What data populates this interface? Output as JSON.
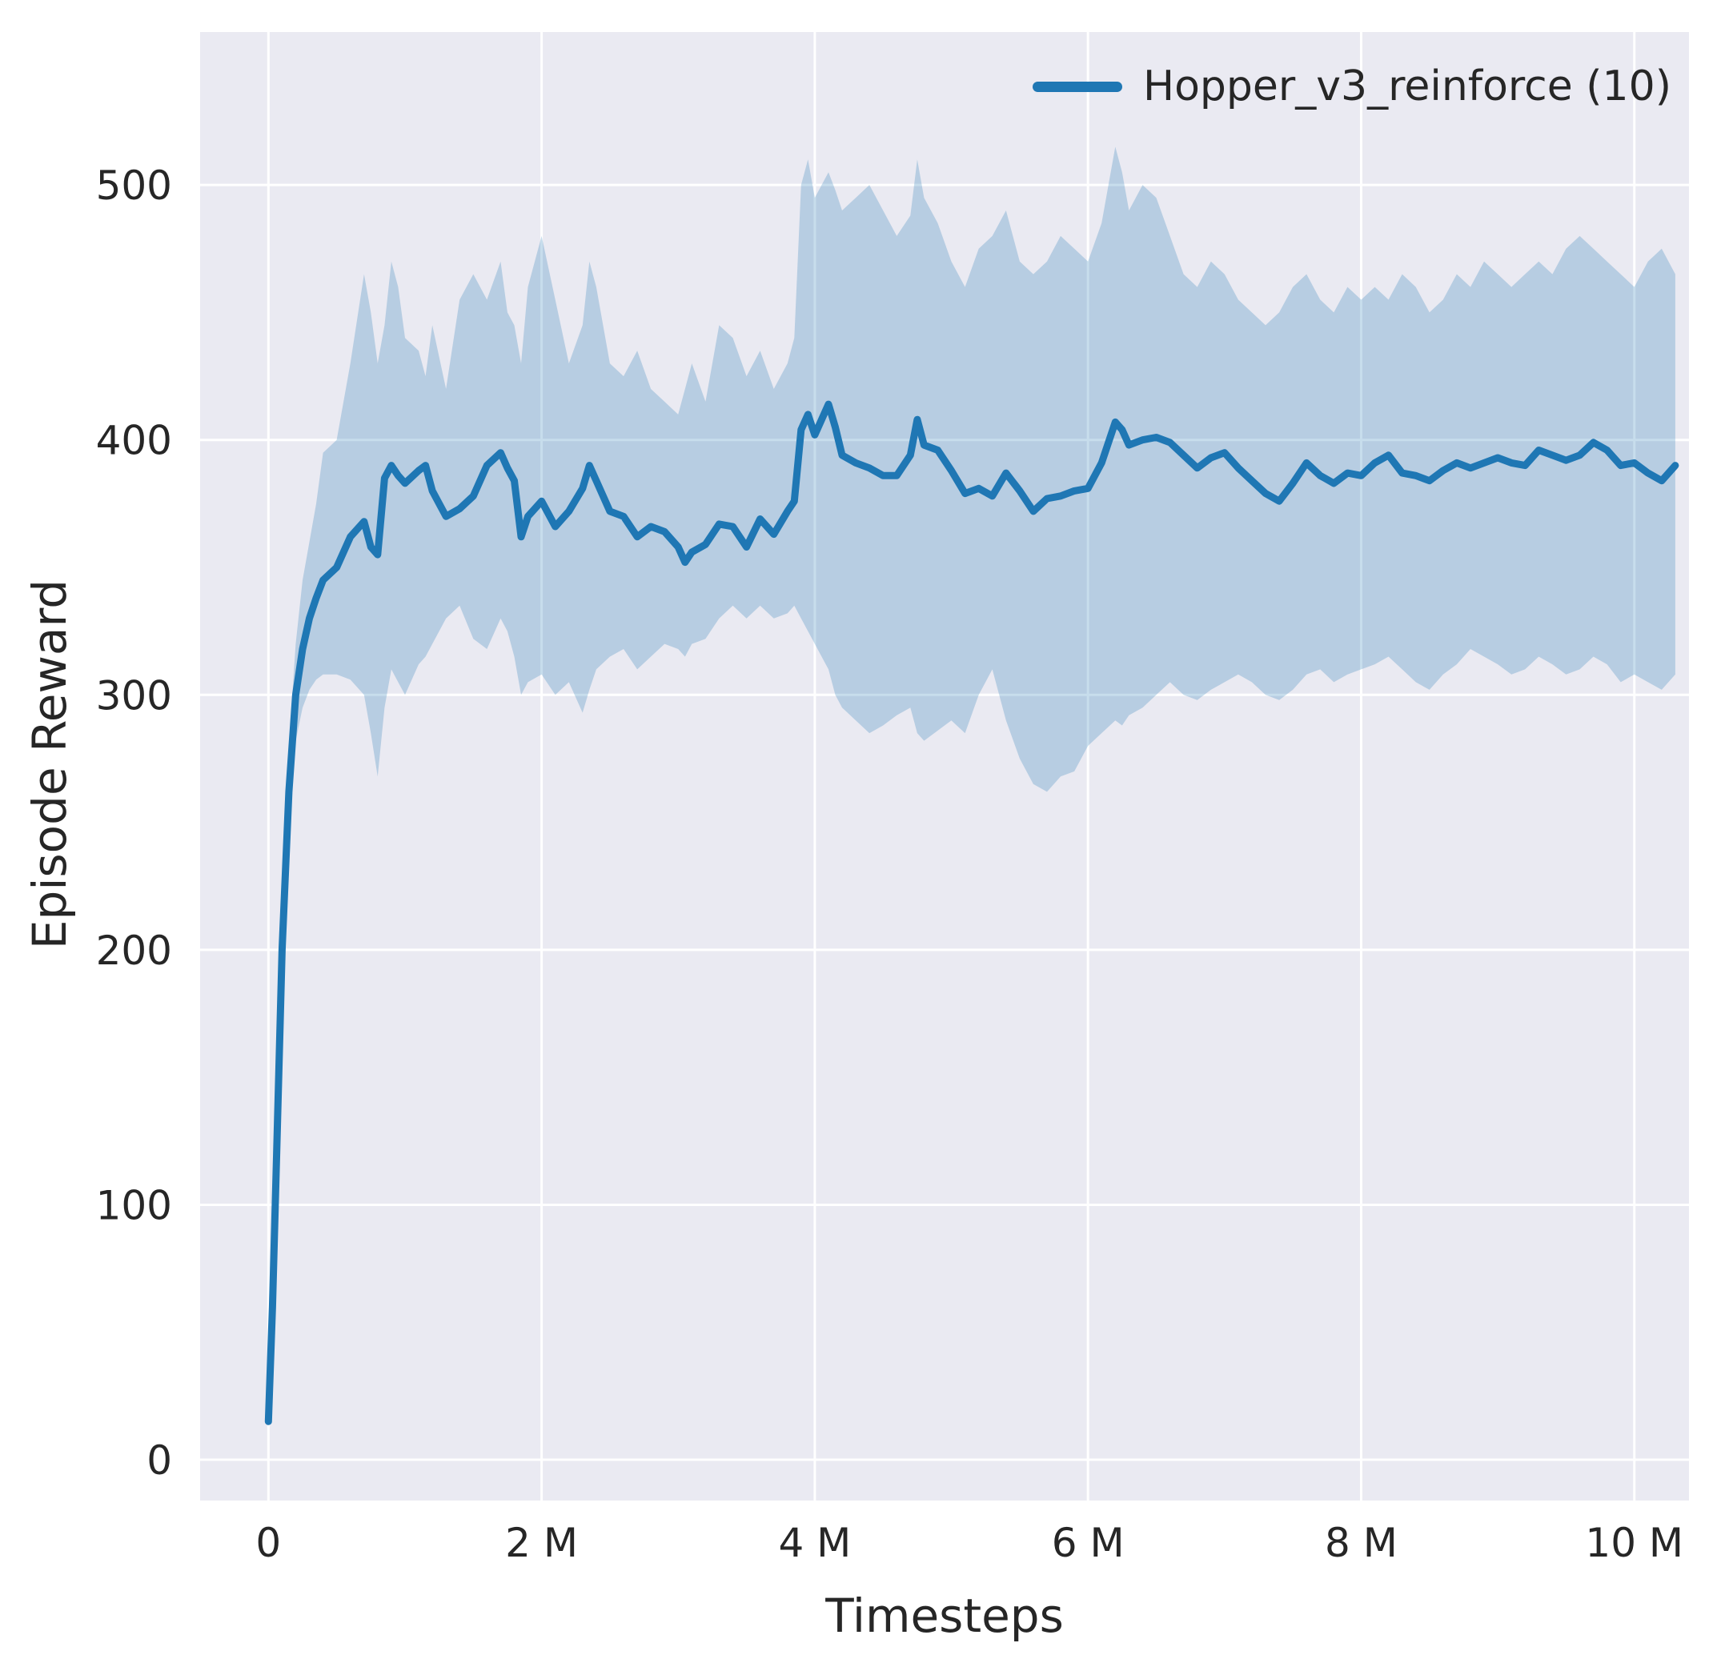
{
  "chart_data": {
    "type": "line",
    "title": "",
    "xlabel": "Timesteps",
    "ylabel": "Episode Reward",
    "x_unit": "millions",
    "xlim": [
      -0.5,
      10.4
    ],
    "ylim": [
      -16,
      560
    ],
    "grid": true,
    "plot_bg": "#eaeaf2",
    "grid_color": "#ffffff",
    "text_color": "#262626",
    "x_ticks": [
      {
        "v": 0,
        "label": "0"
      },
      {
        "v": 2,
        "label": "2 M"
      },
      {
        "v": 4,
        "label": "4 M"
      },
      {
        "v": 6,
        "label": "6 M"
      },
      {
        "v": 8,
        "label": "8 M"
      },
      {
        "v": 10,
        "label": "10 M"
      }
    ],
    "y_ticks": [
      {
        "v": 0,
        "label": "0"
      },
      {
        "v": 100,
        "label": "100"
      },
      {
        "v": 200,
        "label": "200"
      },
      {
        "v": 300,
        "label": "300"
      },
      {
        "v": 400,
        "label": "400"
      },
      {
        "v": 500,
        "label": "500"
      }
    ],
    "legend": {
      "location": "upper right",
      "entries": [
        {
          "label": "Hopper_v3_reinforce (10)",
          "color": "#1f77b4"
        }
      ]
    },
    "series": [
      {
        "name": "Hopper_v3_reinforce (10)",
        "color": "#1f77b4",
        "band_opacity": 0.25,
        "x": [
          0,
          0.03,
          0.06,
          0.1,
          0.15,
          0.2,
          0.25,
          0.3,
          0.35,
          0.4,
          0.5,
          0.6,
          0.7,
          0.75,
          0.8,
          0.85,
          0.9,
          0.95,
          1.0,
          1.1,
          1.15,
          1.2,
          1.3,
          1.4,
          1.5,
          1.6,
          1.7,
          1.75,
          1.8,
          1.85,
          1.9,
          2.0,
          2.1,
          2.2,
          2.3,
          2.35,
          2.4,
          2.5,
          2.6,
          2.7,
          2.8,
          2.9,
          3.0,
          3.05,
          3.1,
          3.2,
          3.3,
          3.4,
          3.5,
          3.6,
          3.7,
          3.8,
          3.85,
          3.9,
          3.95,
          4.0,
          4.1,
          4.15,
          4.2,
          4.3,
          4.4,
          4.5,
          4.6,
          4.7,
          4.75,
          4.8,
          4.9,
          5.0,
          5.1,
          5.2,
          5.3,
          5.4,
          5.5,
          5.6,
          5.7,
          5.8,
          5.9,
          6.0,
          6.1,
          6.2,
          6.25,
          6.3,
          6.4,
          6.5,
          6.6,
          6.7,
          6.8,
          6.9,
          7.0,
          7.1,
          7.2,
          7.3,
          7.4,
          7.5,
          7.6,
          7.7,
          7.8,
          7.9,
          8.0,
          8.1,
          8.2,
          8.3,
          8.4,
          8.5,
          8.6,
          8.7,
          8.8,
          8.9,
          9.0,
          9.1,
          9.2,
          9.3,
          9.4,
          9.5,
          9.6,
          9.7,
          9.8,
          9.9,
          10.0,
          10.1,
          10.2,
          10.3
        ],
        "mean": [
          15,
          60,
          120,
          200,
          262,
          300,
          318,
          330,
          338,
          345,
          350,
          362,
          368,
          358,
          355,
          385,
          390,
          386,
          383,
          388,
          390,
          380,
          370,
          373,
          378,
          390,
          395,
          389,
          384,
          362,
          370,
          376,
          366,
          372,
          381,
          390,
          384,
          372,
          370,
          362,
          366,
          364,
          358,
          352,
          356,
          359,
          367,
          366,
          358,
          369,
          363,
          372,
          376,
          404,
          410,
          402,
          414,
          405,
          394,
          391,
          389,
          386,
          386,
          394,
          408,
          398,
          396,
          388,
          379,
          381,
          378,
          387,
          380,
          372,
          377,
          378,
          380,
          381,
          391,
          407,
          404,
          398,
          400,
          401,
          399,
          394,
          389,
          393,
          395,
          389,
          384,
          379,
          376,
          383,
          391,
          386,
          383,
          387,
          386,
          391,
          394,
          387,
          386,
          384,
          388,
          391,
          389,
          391,
          393,
          391,
          390,
          396,
          394,
          392,
          394,
          399,
          396,
          390,
          391,
          387,
          384,
          390
        ],
        "lower": [
          14,
          55,
          110,
          185,
          245,
          282,
          295,
          302,
          306,
          308,
          308,
          306,
          300,
          285,
          268,
          295,
          310,
          305,
          300,
          312,
          315,
          320,
          330,
          335,
          322,
          318,
          330,
          325,
          315,
          300,
          305,
          308,
          300,
          305,
          293,
          302,
          310,
          315,
          318,
          310,
          315,
          320,
          318,
          315,
          320,
          322,
          330,
          335,
          330,
          335,
          330,
          332,
          335,
          330,
          325,
          320,
          310,
          300,
          295,
          290,
          285,
          288,
          292,
          295,
          285,
          282,
          286,
          290,
          285,
          300,
          310,
          290,
          275,
          265,
          262,
          268,
          270,
          280,
          285,
          290,
          288,
          292,
          295,
          300,
          305,
          300,
          298,
          302,
          305,
          308,
          305,
          300,
          298,
          302,
          308,
          310,
          305,
          308,
          310,
          312,
          315,
          310,
          305,
          302,
          308,
          312,
          318,
          315,
          312,
          308,
          310,
          315,
          312,
          308,
          310,
          315,
          312,
          305,
          308,
          305,
          302,
          308
        ],
        "upper": [
          16,
          65,
          130,
          215,
          280,
          320,
          345,
          360,
          375,
          395,
          400,
          430,
          465,
          450,
          430,
          445,
          470,
          460,
          440,
          435,
          425,
          445,
          420,
          455,
          465,
          455,
          470,
          450,
          445,
          430,
          460,
          480,
          455,
          430,
          445,
          470,
          460,
          430,
          425,
          435,
          420,
          415,
          410,
          420,
          430,
          415,
          445,
          440,
          425,
          435,
          420,
          430,
          440,
          500,
          510,
          495,
          505,
          498,
          490,
          495,
          500,
          490,
          480,
          488,
          510,
          495,
          485,
          470,
          460,
          475,
          480,
          490,
          470,
          465,
          470,
          480,
          475,
          470,
          485,
          515,
          505,
          490,
          500,
          495,
          480,
          465,
          460,
          470,
          465,
          455,
          450,
          445,
          450,
          460,
          465,
          455,
          450,
          460,
          455,
          460,
          455,
          465,
          460,
          450,
          455,
          465,
          460,
          470,
          465,
          460,
          465,
          470,
          465,
          475,
          480,
          475,
          470,
          465,
          460,
          470,
          475,
          465
        ]
      }
    ]
  }
}
